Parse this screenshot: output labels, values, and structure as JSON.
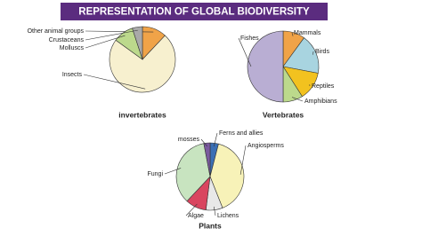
{
  "title": "REPRESENTATION OF GLOBAL BIODIVERSITY",
  "chart_data": [
    {
      "type": "pie",
      "title": "invertebrates",
      "categories": [
        "Other animal groups",
        "Insects",
        "Molluscs",
        "Crustaceans"
      ],
      "values": [
        12,
        73,
        10,
        5
      ],
      "colors": [
        "#f0a348",
        "#f7f0cf",
        "#bcd98c",
        "#a9a9a9"
      ]
    },
    {
      "type": "pie",
      "title": "Vertebrates",
      "categories": [
        "Mammals",
        "Birds",
        "Reptiles",
        "Amphibians",
        "Fishes"
      ],
      "values": [
        10,
        18,
        13,
        9,
        50
      ],
      "colors": [
        "#f0a348",
        "#a8d4e0",
        "#f2c21f",
        "#bcd98c",
        "#b9aed3"
      ]
    },
    {
      "type": "pie",
      "title": "Plants",
      "categories": [
        "Ferns and allies",
        "Angiosperms",
        "Lichens",
        "Algae",
        "Fungi",
        "mosses"
      ],
      "values": [
        4,
        40,
        8,
        10,
        35,
        3
      ],
      "colors": [
        "#3b6fb4",
        "#f7f2b8",
        "#e8e8e8",
        "#d9455f",
        "#c8e4c0",
        "#7a5a9e"
      ]
    }
  ]
}
